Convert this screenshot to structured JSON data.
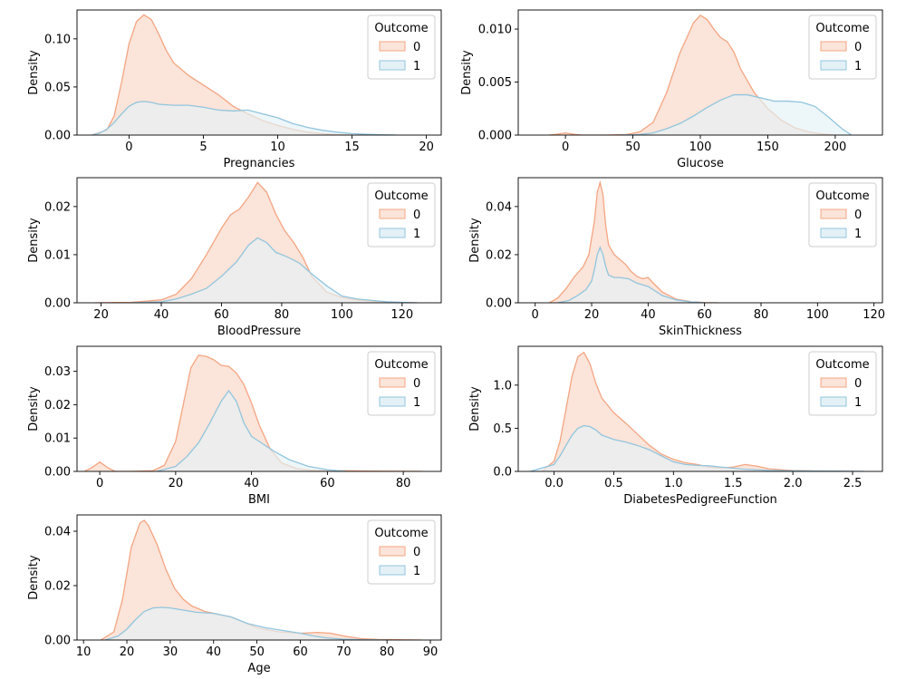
{
  "colors": {
    "outcome_0_fill": "#fbe4d9",
    "outcome_0_line": "#f4a582",
    "outcome_1_fill": "#e3f1f6",
    "outcome_1_line": "#92c5de"
  },
  "chart_data": [
    {
      "type": "area",
      "title": "",
      "xlabel": "Pregnancies",
      "ylabel": "Density",
      "xlim": [
        -3.5,
        21
      ],
      "ylim": [
        0,
        0.13
      ],
      "xticks": [
        0,
        5,
        10,
        15,
        20
      ],
      "xtick_labels": [
        "0",
        "5",
        "10",
        "15",
        "20"
      ],
      "yticks": [
        0,
        0.05,
        0.1
      ],
      "ytick_labels": [
        "0.00",
        "0.05",
        "0.10"
      ],
      "legend": {
        "title": "Outcome",
        "entries": [
          "0",
          "1"
        ],
        "placement": "top-right"
      },
      "series": [
        {
          "name": "0",
          "x": [
            -2.5,
            -1.5,
            -1,
            -0.5,
            0,
            0.5,
            1,
            1.5,
            2,
            2.5,
            3,
            4,
            5,
            6,
            7,
            8,
            9,
            10,
            11,
            12,
            13,
            14,
            15
          ],
          "y": [
            0,
            0.005,
            0.02,
            0.055,
            0.095,
            0.118,
            0.125,
            0.12,
            0.105,
            0.088,
            0.075,
            0.062,
            0.052,
            0.042,
            0.03,
            0.022,
            0.015,
            0.01,
            0.006,
            0.003,
            0.0015,
            0.0005,
            0
          ]
        },
        {
          "name": "1",
          "x": [
            -2.5,
            -2,
            -1.5,
            -1,
            -0.5,
            0,
            0.5,
            1,
            1.5,
            2,
            3,
            4,
            5,
            6,
            7,
            8,
            9,
            10,
            11,
            12,
            13,
            14,
            15,
            16,
            17,
            18
          ],
          "y": [
            0,
            0.002,
            0.006,
            0.013,
            0.022,
            0.03,
            0.034,
            0.035,
            0.034,
            0.032,
            0.031,
            0.031,
            0.029,
            0.026,
            0.025,
            0.026,
            0.022,
            0.018,
            0.012,
            0.008,
            0.005,
            0.003,
            0.0015,
            0.0008,
            0.0003,
            0
          ]
        }
      ]
    },
    {
      "type": "area",
      "title": "",
      "xlabel": "Glucose",
      "ylabel": "Density",
      "xlim": [
        -35,
        235
      ],
      "ylim": [
        0,
        0.0118
      ],
      "xticks": [
        0,
        50,
        100,
        150,
        200
      ],
      "xtick_labels": [
        "0",
        "50",
        "100",
        "150",
        "200"
      ],
      "yticks": [
        0,
        0.005,
        0.01
      ],
      "ytick_labels": [
        "0.000",
        "0.005",
        "0.010"
      ],
      "legend": {
        "title": "Outcome",
        "entries": [
          "0",
          "1"
        ],
        "placement": "top-right"
      },
      "series": [
        {
          "name": "0",
          "x": [
            -12,
            -6,
            0,
            6,
            12,
            30,
            45,
            55,
            65,
            75,
            85,
            95,
            100,
            105,
            110,
            115,
            120,
            125,
            130,
            140,
            150,
            160,
            170,
            180,
            190,
            200
          ],
          "y": [
            0,
            8e-05,
            0.0002,
            8e-05,
            0,
            0,
            5e-05,
            0.0003,
            0.0012,
            0.004,
            0.0078,
            0.0106,
            0.0113,
            0.0109,
            0.01,
            0.0092,
            0.0088,
            0.0078,
            0.0062,
            0.004,
            0.0025,
            0.0014,
            0.0007,
            0.0003,
            0.0001,
            0
          ]
        },
        {
          "name": "1",
          "x": [
            40,
            55,
            65,
            75,
            85,
            95,
            105,
            115,
            125,
            135,
            145,
            155,
            165,
            175,
            185,
            195,
            205,
            212
          ],
          "y": [
            0,
            5e-05,
            0.0002,
            0.0006,
            0.0011,
            0.0018,
            0.0026,
            0.0033,
            0.0038,
            0.0038,
            0.0035,
            0.0032,
            0.0032,
            0.0031,
            0.0027,
            0.0017,
            0.0006,
            0
          ]
        }
      ]
    },
    {
      "type": "area",
      "title": "",
      "xlabel": "BloodPressure",
      "ylabel": "Density",
      "xlim": [
        12,
        133
      ],
      "ylim": [
        0,
        0.026
      ],
      "xticks": [
        20,
        40,
        60,
        80,
        100,
        120
      ],
      "xtick_labels": [
        "20",
        "40",
        "60",
        "80",
        "100",
        "120"
      ],
      "yticks": [
        0,
        0.01,
        0.02
      ],
      "ytick_labels": [
        "0.00",
        "0.01",
        "0.02"
      ],
      "legend": {
        "title": "Outcome",
        "entries": [
          "0",
          "1"
        ],
        "placement": "top-right"
      },
      "series": [
        {
          "name": "0",
          "x": [
            18,
            30,
            40,
            45,
            50,
            55,
            60,
            63,
            66,
            69,
            72,
            75,
            78,
            81,
            84,
            87,
            90,
            95,
            100,
            105,
            110,
            115,
            120,
            125
          ],
          "y": [
            0,
            0.0001,
            0.0006,
            0.0018,
            0.005,
            0.01,
            0.0155,
            0.0183,
            0.0195,
            0.022,
            0.025,
            0.023,
            0.0185,
            0.015,
            0.0125,
            0.0095,
            0.0055,
            0.0022,
            0.0011,
            0.0006,
            0.0003,
            0.0001,
            5e-05,
            0
          ]
        },
        {
          "name": "1",
          "x": [
            30,
            40,
            45,
            50,
            55,
            60,
            65,
            69,
            72,
            75,
            78,
            82,
            86,
            90,
            95,
            100,
            105,
            110,
            115,
            120,
            125
          ],
          "y": [
            0,
            0.0002,
            0.0008,
            0.0018,
            0.003,
            0.0055,
            0.0085,
            0.012,
            0.0135,
            0.0125,
            0.0105,
            0.0095,
            0.0082,
            0.006,
            0.0035,
            0.0014,
            0.0008,
            0.0005,
            0.0002,
            0.0001,
            0
          ]
        }
      ]
    },
    {
      "type": "area",
      "title": "",
      "xlabel": "SkinThickness",
      "ylabel": "Density",
      "xlim": [
        -6,
        123
      ],
      "ylim": [
        0,
        0.052
      ],
      "xticks": [
        0,
        20,
        40,
        60,
        80,
        100,
        120
      ],
      "xtick_labels": [
        "0",
        "20",
        "40",
        "60",
        "80",
        "100",
        "120"
      ],
      "yticks": [
        0,
        0.02,
        0.04
      ],
      "ytick_labels": [
        "0.00",
        "0.02",
        "0.04"
      ],
      "legend": {
        "title": "Outcome",
        "entries": [
          "0",
          "1"
        ],
        "placement": "top-right"
      },
      "series": [
        {
          "name": "0",
          "x": [
            5,
            8,
            11,
            14,
            17,
            19,
            21,
            22,
            23,
            24,
            25,
            26,
            28,
            30,
            32,
            34,
            36,
            38,
            40,
            42,
            45,
            50,
            55,
            60,
            65
          ],
          "y": [
            0,
            0.002,
            0.006,
            0.011,
            0.015,
            0.02,
            0.034,
            0.046,
            0.05,
            0.045,
            0.032,
            0.024,
            0.02,
            0.018,
            0.016,
            0.013,
            0.011,
            0.01,
            0.0105,
            0.008,
            0.0045,
            0.0015,
            0.0005,
            0.0001,
            0
          ]
        },
        {
          "name": "1",
          "x": [
            8,
            12,
            15,
            18,
            20,
            21,
            22,
            23,
            24,
            25,
            26,
            28,
            30,
            33,
            36,
            40,
            45,
            50,
            55,
            60
          ],
          "y": [
            0,
            0.001,
            0.003,
            0.0055,
            0.009,
            0.014,
            0.02,
            0.023,
            0.02,
            0.015,
            0.0115,
            0.0105,
            0.0105,
            0.01,
            0.0082,
            0.0068,
            0.003,
            0.0012,
            0.0004,
            0
          ]
        }
      ]
    },
    {
      "type": "area",
      "title": "",
      "xlabel": "BMI",
      "ylabel": "Density",
      "xlim": [
        -6,
        90
      ],
      "ylim": [
        0,
        0.0375
      ],
      "xticks": [
        0,
        20,
        40,
        60,
        80
      ],
      "xtick_labels": [
        "0",
        "20",
        "40",
        "60",
        "80"
      ],
      "yticks": [
        0,
        0.01,
        0.02,
        0.03
      ],
      "ytick_labels": [
        "0.00",
        "0.01",
        "0.02",
        "0.03"
      ],
      "legend": {
        "title": "Outcome",
        "entries": [
          "0",
          "1"
        ],
        "placement": "top-right"
      },
      "series": [
        {
          "name": "0",
          "x": [
            -4,
            -2,
            0,
            2,
            4,
            8,
            14,
            17,
            20,
            22,
            24,
            26,
            28,
            30,
            32,
            34,
            36,
            38,
            40,
            42,
            45,
            48,
            52,
            56,
            60,
            65,
            70,
            75,
            80,
            85
          ],
          "y": [
            0,
            0.0012,
            0.0028,
            0.0012,
            0,
            0,
            0.0002,
            0.0018,
            0.009,
            0.02,
            0.031,
            0.0348,
            0.0345,
            0.0335,
            0.0318,
            0.0315,
            0.0295,
            0.026,
            0.0205,
            0.014,
            0.0065,
            0.0025,
            0.0008,
            0.0003,
            0.0002,
            0.0002,
            0.0001,
            5e-05,
            3e-05,
            0
          ]
        },
        {
          "name": "1",
          "x": [
            15,
            20,
            23,
            26,
            29,
            32,
            34,
            36,
            38,
            40,
            42,
            44,
            46,
            50,
            55,
            60,
            65
          ],
          "y": [
            0,
            0.0015,
            0.0045,
            0.0085,
            0.0145,
            0.021,
            0.0242,
            0.021,
            0.0145,
            0.0105,
            0.009,
            0.0075,
            0.006,
            0.0035,
            0.0015,
            0.0005,
            0
          ]
        }
      ]
    },
    {
      "type": "area",
      "title": "",
      "xlabel": "DiabetesPedigreeFunction",
      "ylabel": "Density",
      "xlim": [
        -0.3,
        2.75
      ],
      "ylim": [
        0,
        1.45
      ],
      "xticks": [
        0.0,
        0.5,
        1.0,
        1.5,
        2.0,
        2.5
      ],
      "xtick_labels": [
        "0.0",
        "0.5",
        "1.0",
        "1.5",
        "2.0",
        "2.5"
      ],
      "yticks": [
        0,
        0.5,
        1.0
      ],
      "ytick_labels": [
        "0.0",
        "0.5",
        "1.0"
      ],
      "legend": {
        "title": "Outcome",
        "entries": [
          "0",
          "1"
        ],
        "placement": "top-right"
      },
      "series": [
        {
          "name": "0",
          "x": [
            -0.1,
            0,
            0.05,
            0.1,
            0.15,
            0.2,
            0.25,
            0.3,
            0.35,
            0.4,
            0.5,
            0.6,
            0.7,
            0.8,
            0.9,
            1.0,
            1.1,
            1.2,
            1.3,
            1.4,
            1.5,
            1.6,
            1.7,
            1.8,
            1.9,
            2.0,
            2.2,
            2.4,
            2.5
          ],
          "y": [
            0,
            0.12,
            0.35,
            0.72,
            1.1,
            1.33,
            1.38,
            1.25,
            1.02,
            0.85,
            0.68,
            0.56,
            0.43,
            0.3,
            0.2,
            0.14,
            0.1,
            0.08,
            0.05,
            0.04,
            0.05,
            0.08,
            0.06,
            0.03,
            0.02,
            0.01,
            0.005,
            0.002,
            0
          ]
        },
        {
          "name": "1",
          "x": [
            -0.2,
            0,
            0.05,
            0.1,
            0.15,
            0.2,
            0.25,
            0.3,
            0.35,
            0.4,
            0.5,
            0.6,
            0.7,
            0.8,
            0.9,
            1.0,
            1.1,
            1.2,
            1.3,
            1.4,
            1.6,
            1.8,
            2.0,
            2.2,
            2.4,
            2.6
          ],
          "y": [
            0,
            0.08,
            0.18,
            0.3,
            0.42,
            0.5,
            0.53,
            0.52,
            0.48,
            0.42,
            0.37,
            0.34,
            0.3,
            0.25,
            0.18,
            0.11,
            0.08,
            0.07,
            0.065,
            0.05,
            0.025,
            0.012,
            0.006,
            0.004,
            0.002,
            0
          ]
        }
      ]
    },
    {
      "type": "area",
      "title": "",
      "xlabel": "Age",
      "ylabel": "Density",
      "xlim": [
        8.5,
        92.5
      ],
      "ylim": [
        0,
        0.046
      ],
      "xticks": [
        10,
        20,
        30,
        40,
        50,
        60,
        70,
        80,
        90
      ],
      "xtick_labels": [
        "10",
        "20",
        "30",
        "40",
        "50",
        "60",
        "70",
        "80",
        "90"
      ],
      "yticks": [
        0,
        0.02,
        0.04
      ],
      "ytick_labels": [
        "0.00",
        "0.02",
        "0.04"
      ],
      "legend": {
        "title": "Outcome",
        "entries": [
          "0",
          "1"
        ],
        "placement": "top-right"
      },
      "series": [
        {
          "name": "0",
          "x": [
            14,
            17,
            19,
            21,
            23,
            24,
            25,
            27,
            29,
            31,
            33,
            35,
            38,
            41,
            44,
            47,
            50,
            55,
            60,
            64,
            67,
            70,
            74,
            78,
            82,
            86,
            88
          ],
          "y": [
            0,
            0.003,
            0.015,
            0.034,
            0.043,
            0.044,
            0.042,
            0.035,
            0.026,
            0.019,
            0.015,
            0.0125,
            0.0105,
            0.0095,
            0.0085,
            0.0065,
            0.0045,
            0.003,
            0.0025,
            0.0028,
            0.0025,
            0.0015,
            0.0005,
            0.0002,
            0.0001,
            5e-05,
            0
          ]
        },
        {
          "name": "1",
          "x": [
            15,
            18,
            20,
            22,
            24,
            26,
            28,
            30,
            33,
            36,
            40,
            44,
            48,
            52,
            56,
            60,
            63,
            66,
            70,
            74,
            78,
            80
          ],
          "y": [
            0,
            0.0015,
            0.004,
            0.0075,
            0.0105,
            0.0118,
            0.012,
            0.0118,
            0.011,
            0.0102,
            0.0098,
            0.0085,
            0.006,
            0.0045,
            0.0035,
            0.0025,
            0.0015,
            0.0008,
            0.0003,
            0.0001,
            5e-05,
            0
          ]
        }
      ]
    }
  ]
}
